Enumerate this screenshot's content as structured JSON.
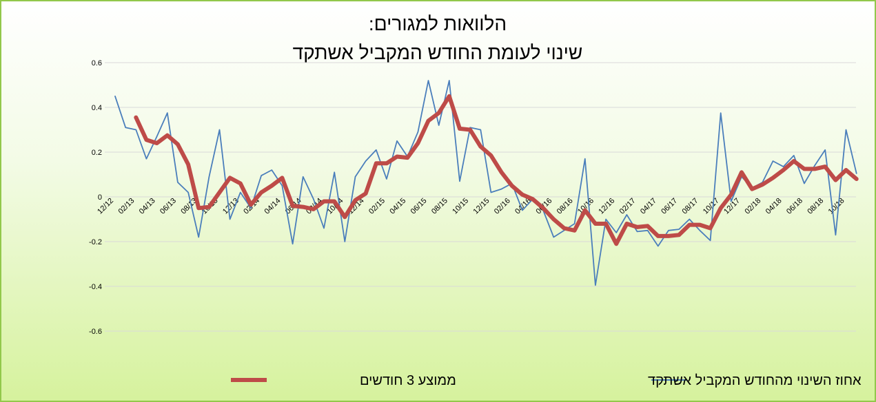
{
  "chart_data": {
    "type": "line",
    "title_lines": [
      "הלוואות למגורים:",
      "שינוי לעומת החודש המקביל אשתקד"
    ],
    "ylim": [
      -0.6,
      0.6
    ],
    "y_ticks": [
      "0.6",
      "0.4",
      "0.2",
      "0",
      "-0.2",
      "-0.4",
      "-0.6"
    ],
    "x_tick_labels": [
      "12/12",
      "02/13",
      "04/13",
      "06/13",
      "08/13",
      "10/13",
      "12/13",
      "02/14",
      "04/14",
      "06/14",
      "08/14",
      "10/14",
      "12/14",
      "02/15",
      "04/15",
      "06/15",
      "08/15",
      "10/15",
      "12/15",
      "02/16",
      "04/16",
      "06/16",
      "08/16",
      "10/16",
      "12/16",
      "02/17",
      "04/17",
      "06/17",
      "08/17",
      "10/17",
      "12/17",
      "02/18",
      "04/18",
      "06/18",
      "08/18",
      "10/18"
    ],
    "grid": true,
    "legend_position": "bottom",
    "series": [
      {
        "name": "אחוז השינוי מהחודש המקביל אשתקד",
        "color": "#4a7ebb",
        "values": [
          0.45,
          0.31,
          0.3,
          0.17,
          0.27,
          0.375,
          0.065,
          0.02,
          -0.18,
          0.09,
          0.3,
          -0.1,
          0.02,
          -0.05,
          0.095,
          0.12,
          0.05,
          -0.21,
          0.09,
          -0.01,
          -0.14,
          0.11,
          -0.2,
          0.09,
          0.16,
          0.21,
          0.08,
          0.25,
          0.18,
          0.29,
          0.52,
          0.32,
          0.52,
          0.07,
          0.31,
          0.3,
          0.02,
          0.035,
          0.06,
          -0.06,
          -0.01,
          -0.06,
          -0.18,
          -0.15,
          -0.12,
          0.17,
          -0.395,
          -0.1,
          -0.16,
          -0.08,
          -0.155,
          -0.15,
          -0.22,
          -0.15,
          -0.145,
          -0.1,
          -0.15,
          -0.195,
          0.375,
          -0.02,
          0.09,
          0.04,
          0.065,
          0.16,
          0.135,
          0.185,
          0.06,
          0.14,
          0.21,
          -0.17,
          0.3,
          0.105
        ]
      },
      {
        "name": "ממוצע 3 חודשים",
        "color": "#be4b48",
        "values": [
          null,
          null,
          0.355,
          0.255,
          0.24,
          0.275,
          0.235,
          0.145,
          -0.05,
          -0.045,
          0.02,
          0.085,
          0.06,
          -0.035,
          0.02,
          0.05,
          0.085,
          -0.04,
          -0.045,
          -0.055,
          -0.02,
          -0.02,
          -0.09,
          -0.015,
          0.015,
          0.15,
          0.15,
          0.18,
          0.175,
          0.24,
          0.34,
          0.375,
          0.45,
          0.305,
          0.3,
          0.225,
          0.185,
          0.11,
          0.05,
          0.01,
          -0.01,
          -0.05,
          -0.1,
          -0.14,
          -0.15,
          -0.06,
          -0.12,
          -0.12,
          -0.21,
          -0.12,
          -0.135,
          -0.13,
          -0.175,
          -0.175,
          -0.17,
          -0.125,
          -0.125,
          -0.14,
          -0.05,
          0.01,
          0.11,
          0.035,
          0.055,
          0.085,
          0.12,
          0.16,
          0.125,
          0.125,
          0.135,
          0.075,
          0.12,
          0.08
        ]
      }
    ]
  }
}
